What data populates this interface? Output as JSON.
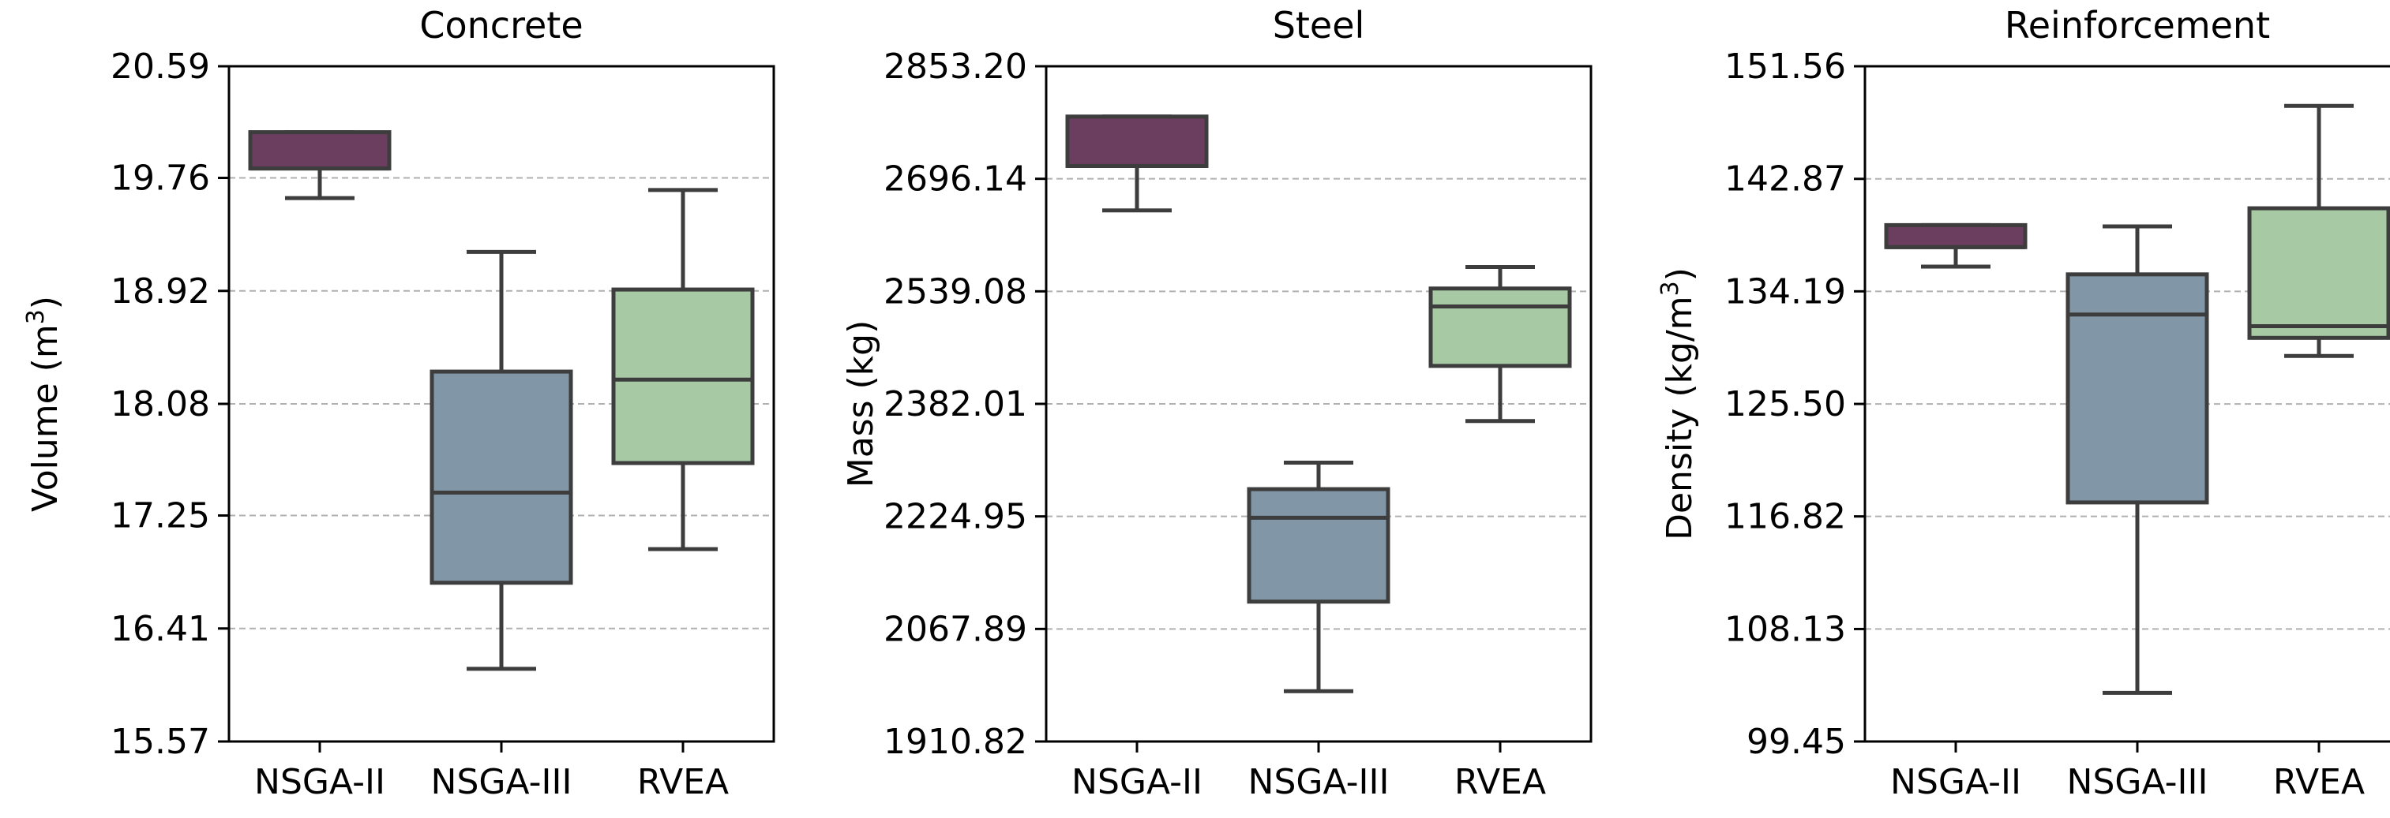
{
  "chart_data": [
    {
      "type": "box",
      "title": "Concrete",
      "ylabel": "Volume (m",
      "ylabel_sup": "3",
      "ylabel_end": ")",
      "ylim": [
        15.57,
        20.59
      ],
      "yticks": [
        15.57,
        16.41,
        17.25,
        18.08,
        18.92,
        19.76,
        20.59
      ],
      "ytick_labels": [
        "15.57",
        "16.41",
        "17.25",
        "18.08",
        "18.92",
        "19.76",
        "20.59"
      ],
      "categories": [
        "NSGA-II",
        "NSGA-III",
        "RVEA"
      ],
      "boxes": [
        {
          "category": "NSGA-II",
          "whislo": 19.61,
          "q1": 19.83,
          "med": 19.83,
          "q3": 20.1,
          "whishi": 20.1,
          "color": "#6b3d5e"
        },
        {
          "category": "NSGA-III",
          "whislo": 16.11,
          "q1": 16.75,
          "med": 17.42,
          "q3": 18.32,
          "whishi": 19.21,
          "color": "#8196a6"
        },
        {
          "category": "RVEA",
          "whislo": 17.0,
          "q1": 17.64,
          "med": 18.26,
          "q3": 18.93,
          "whishi": 19.67,
          "color": "#a7c9a4"
        }
      ]
    },
    {
      "type": "box",
      "title": "Steel",
      "ylabel": "Mass (kg)",
      "ylabel_sup": "",
      "ylabel_end": "",
      "ylim": [
        1910.82,
        2853.2
      ],
      "yticks": [
        1910.82,
        2067.89,
        2224.95,
        2382.01,
        2539.08,
        2696.14,
        2853.2
      ],
      "ytick_labels": [
        "1910.82",
        "2067.89",
        "2224.95",
        "2382.01",
        "2539.08",
        "2696.14",
        "2853.20"
      ],
      "categories": [
        "NSGA-II",
        "NSGA-III",
        "RVEA"
      ],
      "boxes": [
        {
          "category": "NSGA-II",
          "whislo": 2652,
          "q1": 2714,
          "med": 2714,
          "q3": 2783,
          "whishi": 2783,
          "color": "#6b3d5e"
        },
        {
          "category": "NSGA-III",
          "whislo": 1981,
          "q1": 2106,
          "med": 2223,
          "q3": 2263,
          "whishi": 2300,
          "color": "#8196a6"
        },
        {
          "category": "RVEA",
          "whislo": 2358,
          "q1": 2435,
          "med": 2518,
          "q3": 2543,
          "whishi": 2573,
          "color": "#a7c9a4"
        }
      ]
    },
    {
      "type": "box",
      "title": "Reinforcement",
      "ylabel": "Density (kg/m",
      "ylabel_sup": "3",
      "ylabel_end": ")",
      "ylim": [
        99.45,
        151.56
      ],
      "yticks": [
        99.45,
        108.13,
        116.82,
        125.5,
        134.19,
        142.87,
        151.56
      ],
      "ytick_labels": [
        "99.45",
        "108.13",
        "116.82",
        "125.50",
        "134.19",
        "142.87",
        "151.56"
      ],
      "categories": [
        "NSGA-II",
        "NSGA-III",
        "RVEA"
      ],
      "boxes": [
        {
          "category": "NSGA-II",
          "whislo": 136.1,
          "q1": 137.6,
          "med": 137.6,
          "q3": 139.3,
          "whishi": 139.3,
          "color": "#6b3d5e"
        },
        {
          "category": "NSGA-III",
          "whislo": 103.2,
          "q1": 117.9,
          "med": 132.4,
          "q3": 135.5,
          "whishi": 139.2,
          "color": "#8196a6"
        },
        {
          "category": "RVEA",
          "whislo": 129.2,
          "q1": 130.6,
          "med": 131.5,
          "q3": 140.6,
          "whishi": 148.5,
          "color": "#a7c9a4"
        }
      ]
    }
  ]
}
